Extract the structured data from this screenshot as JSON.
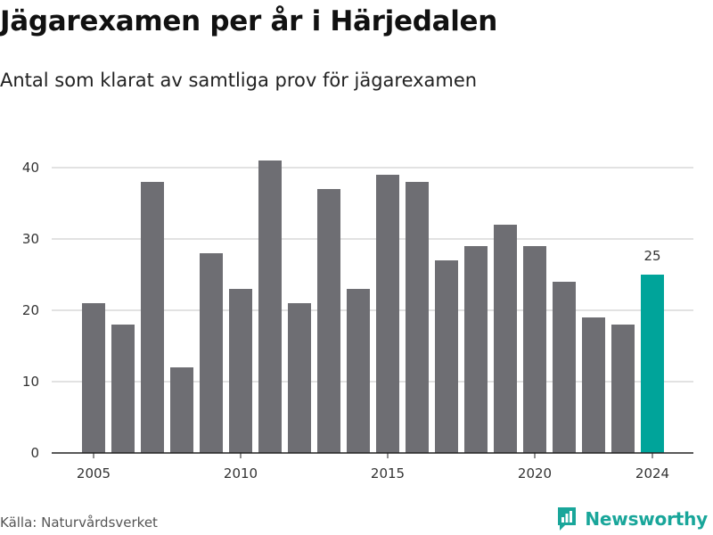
{
  "header": {
    "title": "Jägarexamen per år i Härjedalen",
    "subtitle": "Antal som klarat av samtliga prov för jägarexamen"
  },
  "footer": {
    "source": "Källa: Naturvårdsverket",
    "brand": "Newsworthy",
    "brand_icon": "newsworthy-logo-icon"
  },
  "colors": {
    "bar": "#6e6e73",
    "highlight": "#00a49a",
    "grid": "#d9d9d9",
    "axis": "#222222",
    "brand": "#19a69a"
  },
  "chart_data": {
    "type": "bar",
    "categories": [
      "2005",
      "2006",
      "2007",
      "2008",
      "2009",
      "2010",
      "2011",
      "2012",
      "2013",
      "2014",
      "2015",
      "2016",
      "2017",
      "2018",
      "2019",
      "2020",
      "2021",
      "2022",
      "2023",
      "2024"
    ],
    "values": [
      21,
      18,
      38,
      12,
      28,
      23,
      41,
      21,
      37,
      23,
      39,
      38,
      27,
      29,
      32,
      29,
      24,
      19,
      18,
      25
    ],
    "highlight_category": "2024",
    "data_labels": [
      {
        "category": "2024",
        "text": "25"
      }
    ],
    "x_tick_labels": [
      "2005",
      "2010",
      "2015",
      "2020",
      "2024"
    ],
    "y_ticks": [
      0,
      10,
      20,
      30,
      40
    ],
    "ylim": [
      0,
      41
    ],
    "xlabel": "",
    "ylabel": "",
    "grid": true
  }
}
